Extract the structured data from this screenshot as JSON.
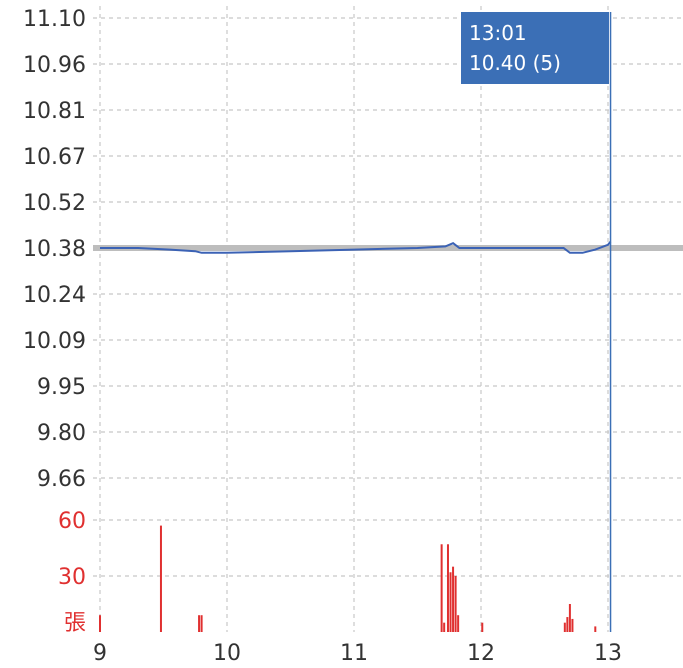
{
  "chart_data": {
    "type": "line",
    "x_ticks": [
      "9",
      "10",
      "11",
      "12",
      "13"
    ],
    "price_ticks": [
      "11.10",
      "10.96",
      "10.81",
      "10.67",
      "10.52",
      "10.38",
      "10.24",
      "10.09",
      "9.95",
      "9.80",
      "9.66"
    ],
    "volume_ticks": [
      "60",
      "30",
      "張"
    ],
    "ylim_price": [
      9.66,
      11.1
    ],
    "ylim_volume": [
      0,
      60
    ],
    "xlim": [
      9,
      13.6
    ],
    "reference_price": 10.38,
    "grid": true,
    "colors": {
      "price_line": "#3b62b5",
      "reference_line": "#bdbdbd",
      "volume_bars": "#e03030",
      "grid": "#c8c8c8",
      "cursor": "#3b6fb6",
      "tooltip_bg": "#3b6fb6"
    },
    "price_series": {
      "x": [
        9.0,
        9.3,
        9.55,
        9.75,
        9.8,
        10.0,
        10.5,
        11.0,
        11.5,
        11.72,
        11.78,
        11.83,
        12.0,
        12.3,
        12.65,
        12.7,
        12.8,
        12.9,
        13.0,
        13.02
      ],
      "y": [
        10.38,
        10.38,
        10.375,
        10.37,
        10.365,
        10.365,
        10.37,
        10.375,
        10.38,
        10.385,
        10.395,
        10.38,
        10.38,
        10.38,
        10.38,
        10.365,
        10.365,
        10.375,
        10.39,
        10.4
      ]
    },
    "volume_series": {
      "x": [
        9.0,
        9.48,
        9.78,
        9.8,
        11.69,
        11.71,
        11.74,
        11.76,
        11.78,
        11.8,
        11.82,
        12.01,
        12.66,
        12.68,
        12.7,
        12.72,
        12.9
      ],
      "y": [
        9,
        57,
        9,
        9,
        47,
        5,
        47,
        32,
        35,
        30,
        9,
        5,
        5,
        8,
        15,
        7,
        3
      ]
    },
    "tooltip": {
      "time": "13:01",
      "value": "10.40 (5)",
      "x": 13.02
    }
  }
}
